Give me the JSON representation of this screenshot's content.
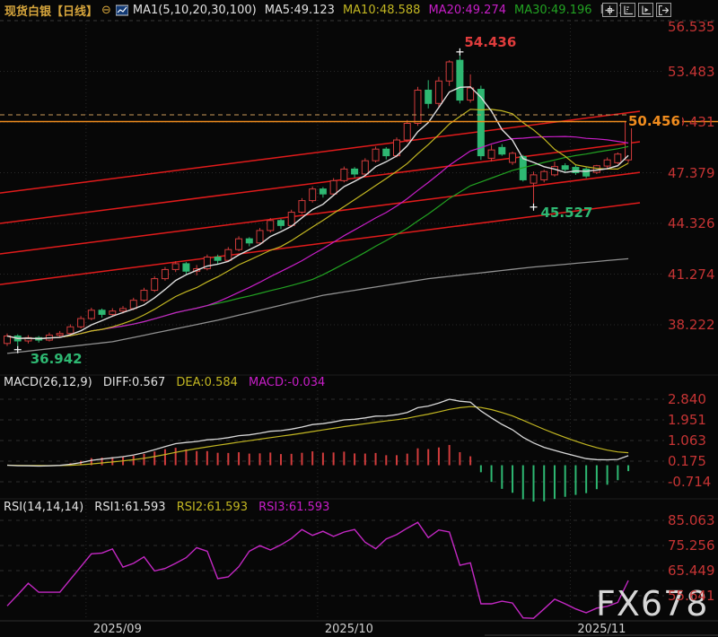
{
  "header": {
    "title": "现货白银【日线】",
    "collapse_icon": "⊖",
    "ma_group_label": "MA1(5,10,20,30,100)",
    "ma_items": [
      {
        "label": "MA5:49.123",
        "color": "#e0e0e0"
      },
      {
        "label": "MA10:48.588",
        "color": "#c3b722"
      },
      {
        "label": "MA20:49.274",
        "color": "#c81ec8"
      },
      {
        "label": "MA30:49.196",
        "color": "#22a322"
      },
      {
        "label": "MA10",
        "color": "#8a8a8a"
      }
    ],
    "toolbar_icons": [
      "crosshair-icon",
      "axis-scale-icon",
      "axis-play-icon",
      "exit-fullscreen-icon"
    ]
  },
  "macd_header": {
    "name": "MACD(26,12,9)",
    "diff": "DIFF:0.567",
    "dea": "DEA:0.584",
    "macd": "MACD:-0.034"
  },
  "rsi_header": {
    "name": "RSI(14,14,14)",
    "rsi1": "RSI1:61.593",
    "rsi2": "RSI2:61.593",
    "rsi3": "RSI3:61.593"
  },
  "watermark": "FX678",
  "colors": {
    "up": "#d23c3c",
    "down": "#2eb872",
    "ma5": "#e0e0e0",
    "ma10": "#c3b722",
    "ma20": "#c81ec8",
    "ma30": "#22a322",
    "ma100": "#909090",
    "axis_label": "#c63434",
    "price_line": "#f08c1e",
    "dashed_level_line": "#c89858",
    "trend_line": "#e11b1b",
    "rsi_line": "#c428c4",
    "title": "#d6a53c",
    "date_label": "#d0d0d0",
    "annotation_high": "#e03c3c",
    "annotation_low": "#2eb872",
    "watermark": "#e8e8e8",
    "grid": "#2a2a2a",
    "panel_grid": "#333333"
  },
  "chart_data": {
    "type": "candlestick-with-indicators",
    "main": {
      "price_ticks": [
        {
          "label": "56.535",
          "value": 56.535
        },
        {
          "label": "53.483",
          "value": 53.483
        },
        {
          "label": "50.431",
          "value": 50.431
        },
        {
          "label": "47.379",
          "value": 47.379
        },
        {
          "label": "44.326",
          "value": 44.326
        },
        {
          "label": "41.274",
          "value": 41.274
        },
        {
          "label": "38.222",
          "value": 38.222
        }
      ],
      "candles_ohlc": [
        [
          37.1,
          37.7,
          36.95,
          37.55
        ],
        [
          37.55,
          37.65,
          36.942,
          37.25
        ],
        [
          37.25,
          37.6,
          37.1,
          37.45
        ],
        [
          37.45,
          37.55,
          37.15,
          37.3
        ],
        [
          37.3,
          37.75,
          37.22,
          37.6
        ],
        [
          37.6,
          37.85,
          37.45,
          37.7
        ],
        [
          37.7,
          38.25,
          37.6,
          38.1
        ],
        [
          38.1,
          38.75,
          38.0,
          38.6
        ],
        [
          38.6,
          39.25,
          38.5,
          39.1
        ],
        [
          39.1,
          39.2,
          38.65,
          38.85
        ],
        [
          38.85,
          39.22,
          38.7,
          39.05
        ],
        [
          39.05,
          39.35,
          38.9,
          39.2
        ],
        [
          39.2,
          39.85,
          39.1,
          39.7
        ],
        [
          39.7,
          40.45,
          39.6,
          40.3
        ],
        [
          40.3,
          41.15,
          40.2,
          41.0
        ],
        [
          41.0,
          41.7,
          40.88,
          41.55
        ],
        [
          41.55,
          42.05,
          41.4,
          41.9
        ],
        [
          41.9,
          42.0,
          41.28,
          41.45
        ],
        [
          41.45,
          41.82,
          41.2,
          41.6
        ],
        [
          41.6,
          42.45,
          41.5,
          42.3
        ],
        [
          42.3,
          42.45,
          41.88,
          42.1
        ],
        [
          42.1,
          42.9,
          42.0,
          42.75
        ],
        [
          42.75,
          43.55,
          42.65,
          43.4
        ],
        [
          43.4,
          43.5,
          42.95,
          43.15
        ],
        [
          43.15,
          44.05,
          43.05,
          43.9
        ],
        [
          43.9,
          44.65,
          43.78,
          44.5
        ],
        [
          44.5,
          44.6,
          43.98,
          44.2
        ],
        [
          44.2,
          45.15,
          44.1,
          45.0
        ],
        [
          45.0,
          45.85,
          44.9,
          45.7
        ],
        [
          45.7,
          46.55,
          45.58,
          46.4
        ],
        [
          46.4,
          46.52,
          45.88,
          46.1
        ],
        [
          46.1,
          47.05,
          46.0,
          46.9
        ],
        [
          46.9,
          47.75,
          46.8,
          47.6
        ],
        [
          47.6,
          47.72,
          47.08,
          47.3
        ],
        [
          47.3,
          48.25,
          47.2,
          48.1
        ],
        [
          48.1,
          48.95,
          48.0,
          48.8
        ],
        [
          48.8,
          48.92,
          48.18,
          48.4
        ],
        [
          48.4,
          49.5,
          48.3,
          49.35
        ],
        [
          49.35,
          50.55,
          49.2,
          50.35
        ],
        [
          50.35,
          52.55,
          50.2,
          52.35
        ],
        [
          52.35,
          52.95,
          51.25,
          51.55
        ],
        [
          51.55,
          53.15,
          51.35,
          52.9
        ],
        [
          52.9,
          54.15,
          52.6,
          54.05
        ],
        [
          54.15,
          54.436,
          51.55,
          51.75
        ],
        [
          51.75,
          53.3,
          51.6,
          52.48
        ],
        [
          52.4,
          52.62,
          48.15,
          48.4
        ],
        [
          48.25,
          49.05,
          48.05,
          48.75
        ],
        [
          48.9,
          49.1,
          48.4,
          48.5
        ],
        [
          48.0,
          48.65,
          47.85,
          48.55
        ],
        [
          48.35,
          48.45,
          46.85,
          46.95
        ],
        [
          46.75,
          47.45,
          45.527,
          47.25
        ],
        [
          46.95,
          47.55,
          46.8,
          47.45
        ],
        [
          47.25,
          48.05,
          47.15,
          47.75
        ],
        [
          47.8,
          47.95,
          47.45,
          47.58
        ],
        [
          47.7,
          47.85,
          47.25,
          47.38
        ],
        [
          47.6,
          47.7,
          47.05,
          47.18
        ],
        [
          47.4,
          47.85,
          47.3,
          47.8
        ],
        [
          47.78,
          48.3,
          47.6,
          48.15
        ],
        [
          47.98,
          48.6,
          47.9,
          48.5
        ],
        [
          48.15,
          50.55,
          47.98,
          50.456
        ]
      ],
      "ma_windows": [
        5,
        10,
        20,
        30
      ],
      "ma100_anchors": [
        [
          0,
          36.5
        ],
        [
          10,
          37.2
        ],
        [
          20,
          38.5
        ],
        [
          30,
          40.0
        ],
        [
          40,
          41.0
        ],
        [
          50,
          41.7
        ],
        [
          59,
          42.2
        ]
      ],
      "trend_lines": [
        {
          "p_left": 46.16,
          "p_right": 51.08
        },
        {
          "p_left": 44.33,
          "p_right": 49.24
        },
        {
          "p_left": 42.49,
          "p_right": 47.4
        },
        {
          "p_left": 40.65,
          "p_right": 45.57
        }
      ],
      "current_price": 50.456,
      "current_price_label": "50.456",
      "dashed_level": 50.86,
      "annotations": {
        "high": {
          "index": 43,
          "price": 54.436,
          "label": "54.436"
        },
        "low": {
          "index": 1,
          "price": 36.942,
          "label": "36.942"
        },
        "swing_low": {
          "index": 50,
          "price": 45.527,
          "label": "45.527"
        }
      }
    },
    "macd": {
      "params": [
        26,
        12,
        9
      ],
      "diff_end": 0.567,
      "dea_end": 0.584,
      "hist_end": -0.034,
      "ticks": [
        {
          "label": "2.840",
          "value": 2.84
        },
        {
          "label": "1.951",
          "value": 1.951
        },
        {
          "label": "1.063",
          "value": 1.063
        },
        {
          "label": "0.175",
          "value": 0.175
        },
        {
          "label": "-0.714",
          "value": -0.714
        }
      ]
    },
    "rsi": {
      "params": [
        14,
        14,
        14
      ],
      "ticks": [
        {
          "label": "85.063",
          "value": 85.063
        },
        {
          "label": "75.256",
          "value": 75.256
        },
        {
          "label": "65.449",
          "value": 65.449
        },
        {
          "label": "55.641",
          "value": 55.641
        }
      ],
      "values": [
        51.7,
        56.0,
        60.5,
        57.0,
        57.0,
        57.0,
        62.0,
        67.0,
        72.0,
        72.3,
        73.9,
        66.8,
        68.3,
        70.8,
        65.3,
        66.3,
        68.3,
        70.5,
        74.4,
        73.0,
        62.3,
        63.0,
        67.0,
        73.0,
        75.2,
        73.5,
        75.5,
        78.0,
        81.5,
        79.2,
        80.8,
        78.8,
        80.5,
        81.5,
        76.5,
        74.0,
        77.8,
        79.5,
        82.0,
        84.3,
        78.3,
        81.3,
        80.5,
        67.5,
        68.5,
        52.5,
        52.5,
        53.5,
        52.8,
        47.0,
        46.8,
        50.5,
        54.3,
        52.5,
        50.5,
        49.0,
        50.8,
        51.5,
        53.0,
        61.593
      ]
    },
    "x_axis": {
      "labels": [
        "2025/09",
        "2025/10",
        "2025/11"
      ],
      "label_indices": [
        8,
        30,
        54
      ]
    }
  }
}
